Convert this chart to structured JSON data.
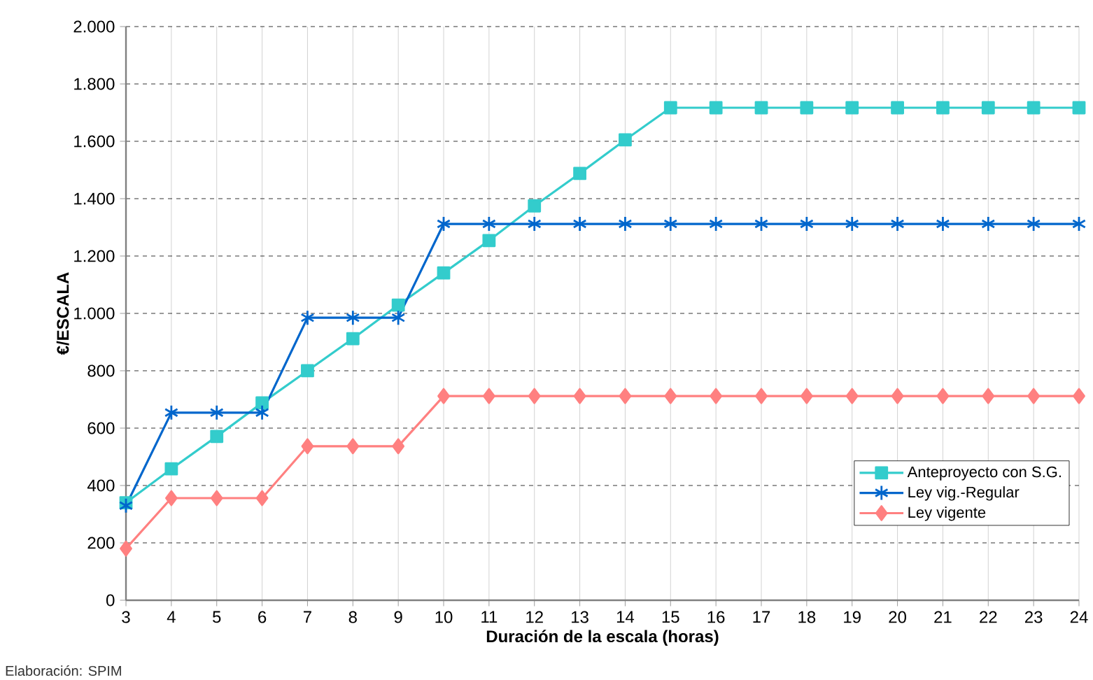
{
  "chart_data": {
    "type": "line",
    "xlabel": "Duración de la escala (horas)",
    "ylabel": "€/ESCALA",
    "x": [
      3,
      4,
      5,
      6,
      7,
      8,
      9,
      10,
      11,
      12,
      13,
      14,
      15,
      16,
      17,
      18,
      19,
      20,
      21,
      22,
      23,
      24
    ],
    "xlim": [
      3,
      24
    ],
    "xticks": [
      3,
      4,
      5,
      6,
      7,
      8,
      9,
      10,
      11,
      12,
      13,
      14,
      15,
      16,
      17,
      18,
      19,
      20,
      21,
      22,
      23,
      24
    ],
    "ylim": [
      0,
      2000
    ],
    "yticks": [
      0,
      200,
      400,
      600,
      800,
      {
        "value": 1000,
        "label": "1.000"
      },
      {
        "value": 1200,
        "label": "1.200"
      },
      {
        "value": 1400,
        "label": "1.400"
      },
      {
        "value": 1600,
        "label": "1.600"
      },
      {
        "value": 1800,
        "label": "1.800"
      },
      {
        "value": 2000,
        "label": "2.000"
      }
    ],
    "grid": true,
    "legend": "right",
    "annotations": [
      "Elaboración: SPIM"
    ],
    "series": [
      {
        "name": "Anteproyecto con S.G.",
        "color": "#33cccc",
        "marker": "square",
        "values": [
          340,
          458,
          571,
          688,
          800,
          912,
          1029,
          1141,
          1254,
          1375,
          1488,
          1605,
          1717,
          1717,
          1717,
          1717,
          1717,
          1717,
          1717,
          1717,
          1717,
          1717
        ]
      },
      {
        "name": "Ley vig.-Regular",
        "color": "#0066cc",
        "marker": "cross",
        "values": [
          330,
          654,
          654,
          654,
          985,
          985,
          985,
          1312,
          1312,
          1312,
          1312,
          1312,
          1312,
          1312,
          1312,
          1312,
          1312,
          1312,
          1312,
          1312,
          1312,
          1312
        ]
      },
      {
        "name": "Ley vigente",
        "color": "#ff8080",
        "marker": "diamond",
        "values": [
          180,
          356,
          356,
          356,
          537,
          537,
          537,
          712,
          712,
          712,
          712,
          712,
          712,
          712,
          712,
          712,
          712,
          712,
          712,
          712,
          712,
          712
        ]
      }
    ]
  }
}
